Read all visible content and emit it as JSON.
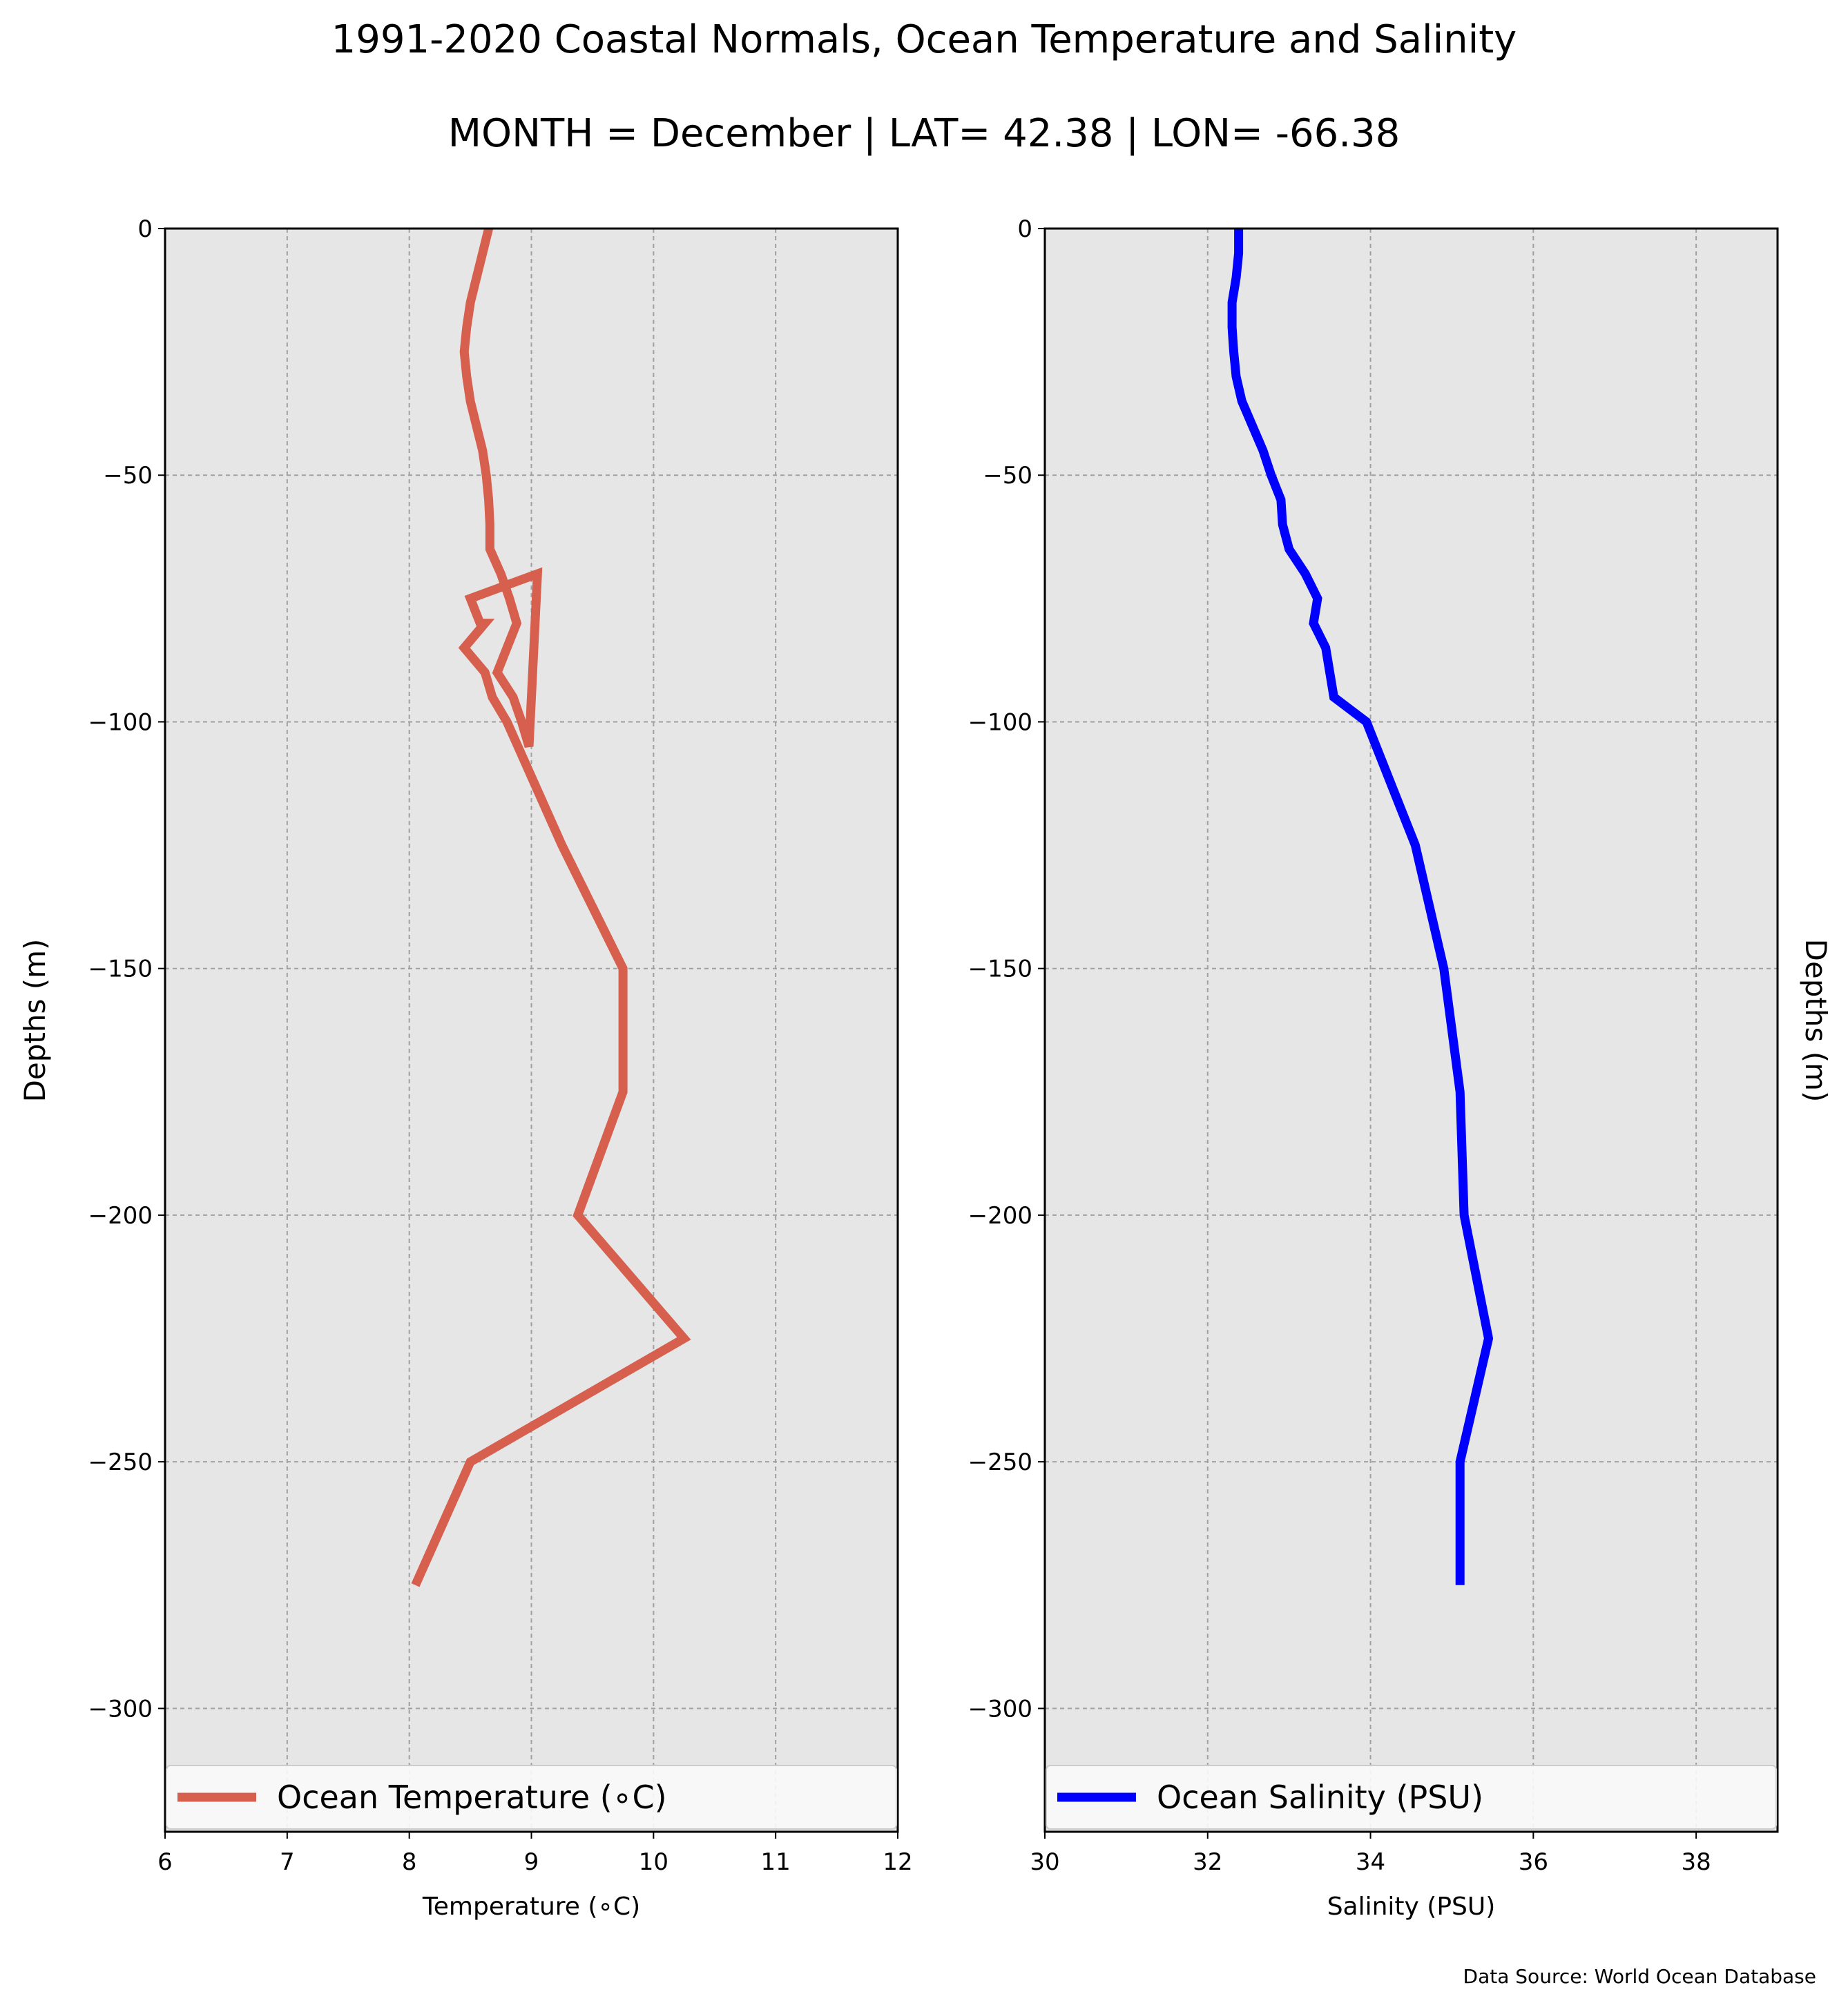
{
  "figure": {
    "title": "1991-2020 Coastal Normals, Ocean Temperature and Salinity",
    "subtitle": "MONTH = December | LAT= 42.38 | LON= -66.38",
    "source": "Data Source: World Ocean Database",
    "background": "#e6e6e6",
    "grid_color": "#a0a0a0"
  },
  "chart_data": [
    {
      "type": "line",
      "orientation": "profile (x = value, y = depth)",
      "xlabel": "Temperature (∘C)",
      "ylabel": "Depths (m)",
      "xlim": [
        6,
        12
      ],
      "ylim": [
        -325,
        0
      ],
      "xticks": [
        "6",
        "7",
        "8",
        "9",
        "10",
        "11",
        "12"
      ],
      "yticks": [
        "0",
        "−50",
        "−100",
        "−150",
        "−200",
        "−250",
        "−300"
      ],
      "grid": true,
      "legend_placement": "bottom",
      "series": [
        {
          "name": "Ocean Temperature (∘C)",
          "color": "#d65f4e",
          "x": [
            8.65,
            8.6,
            8.55,
            8.5,
            8.47,
            8.45,
            8.47,
            8.5,
            8.55,
            8.6,
            8.63,
            8.65,
            8.66,
            8.66,
            8.75,
            8.82,
            8.88,
            8.8,
            8.72,
            8.85,
            8.92,
            8.98,
            9.05,
            8.5,
            8.58,
            8.62,
            8.45,
            8.62,
            8.68,
            8.8,
            9.25,
            9.75,
            9.75,
            9.38,
            10.25,
            8.5,
            8.05
          ],
          "y": [
            0,
            -5,
            -10,
            -15,
            -20,
            -25,
            -30,
            -35,
            -40,
            -45,
            -50,
            -55,
            -60,
            -65,
            -70,
            -75,
            -80,
            -85,
            -90,
            -95,
            -100,
            -105,
            -70,
            -75,
            -80,
            -80,
            -85,
            -90,
            -95,
            -100,
            -125,
            -150,
            -175,
            -200,
            -225,
            -250,
            -275
          ]
        }
      ]
    },
    {
      "type": "line",
      "orientation": "profile (x = value, y = depth)",
      "xlabel": "Salinity (PSU)",
      "ylabel": "Depths (m)",
      "xlim": [
        30,
        39
      ],
      "ylim": [
        -325,
        0
      ],
      "xticks": [
        "30",
        "32",
        "34",
        "36",
        "38"
      ],
      "yticks": [
        "0",
        "−50",
        "−100",
        "−150",
        "−200",
        "−250",
        "−300"
      ],
      "grid": true,
      "legend_placement": "bottom",
      "series": [
        {
          "name": "Ocean Salinity (PSU)",
          "color": "#0000ff",
          "x": [
            32.38,
            32.38,
            32.35,
            32.3,
            32.3,
            32.32,
            32.35,
            32.42,
            32.55,
            32.68,
            32.78,
            32.9,
            32.92,
            33.0,
            33.2,
            33.35,
            33.3,
            33.45,
            33.5,
            33.55,
            33.95,
            34.55,
            34.9,
            35.1,
            35.15,
            35.45,
            35.1,
            35.1
          ],
          "y": [
            0,
            -5,
            -10,
            -15,
            -20,
            -25,
            -30,
            -35,
            -40,
            -45,
            -50,
            -55,
            -60,
            -65,
            -70,
            -75,
            -80,
            -85,
            -90,
            -95,
            -100,
            -125,
            -150,
            -175,
            -200,
            -225,
            -250,
            -275
          ]
        }
      ]
    }
  ]
}
